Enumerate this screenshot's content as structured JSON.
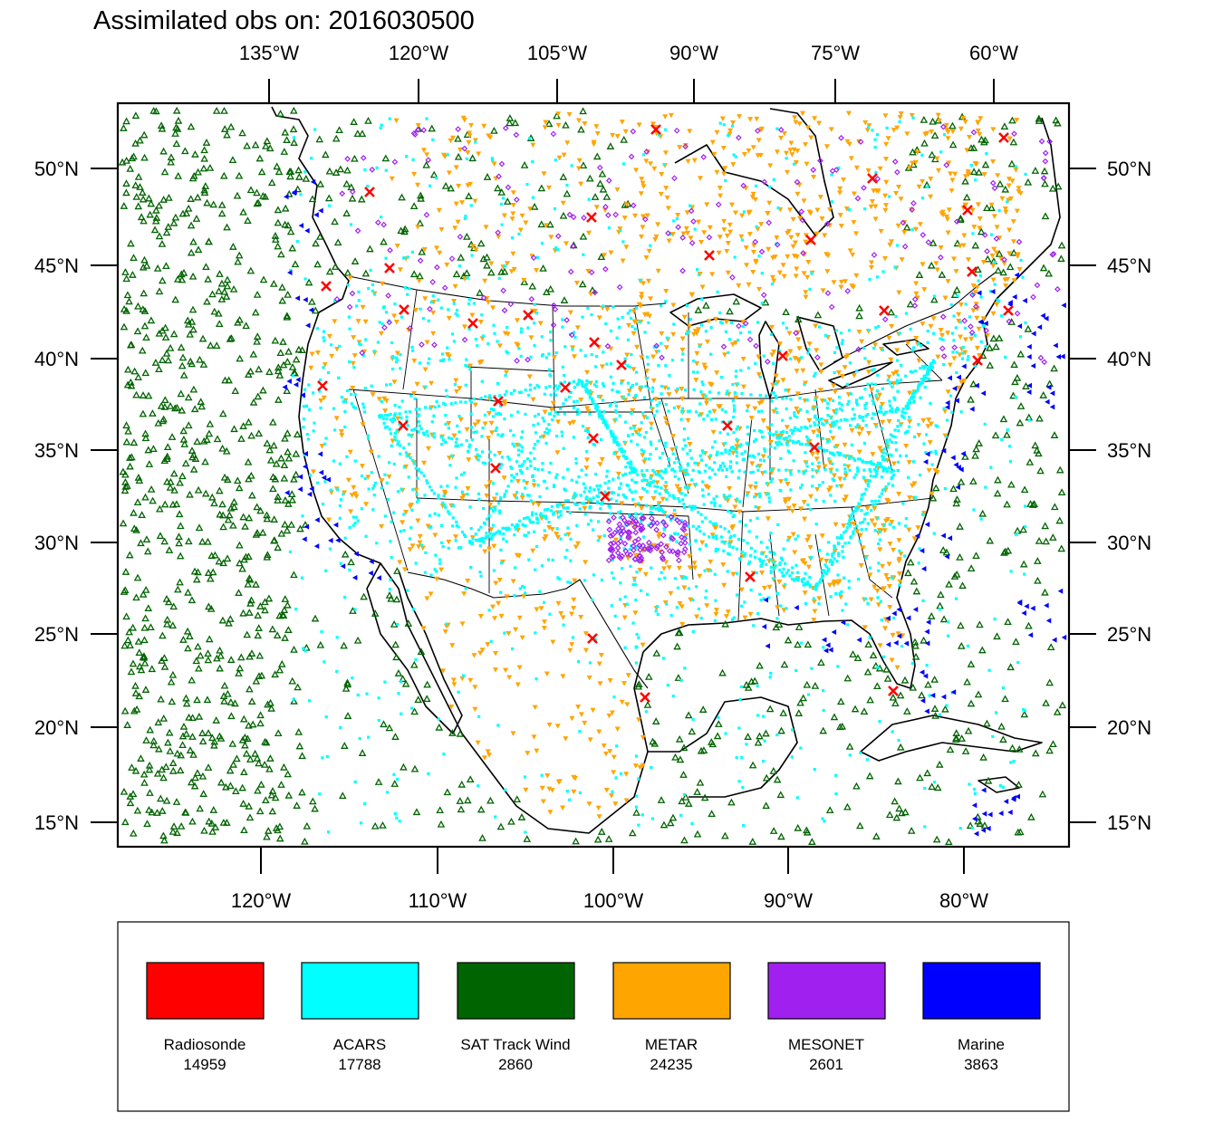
{
  "title": "Assimilated obs on: 2016030500",
  "top_ticks": [
    "135°W",
    "120°W",
    "105°W",
    "90°W",
    "75°W",
    "60°W"
  ],
  "bottom_ticks": [
    "120°W",
    "110°W",
    "100°W",
    "90°W",
    "80°W"
  ],
  "lat_ticks": [
    "50°N",
    "45°N",
    "40°N",
    "35°N",
    "30°N",
    "25°N",
    "20°N",
    "15°N"
  ],
  "legend": [
    {
      "name": "Radiosonde",
      "count": "14959",
      "color": "#ff0000",
      "marker": "x-cross"
    },
    {
      "name": "ACARS",
      "count": "17788",
      "color": "#00ffff",
      "marker": "square"
    },
    {
      "name": "SAT Track Wind",
      "count": "2860",
      "color": "#006400",
      "marker": "triangle-up"
    },
    {
      "name": "METAR",
      "count": "24235",
      "color": "#ffa500",
      "marker": "triangle-down"
    },
    {
      "name": "MESONET",
      "count": "2601",
      "color": "#a020f0",
      "marker": "diamond"
    },
    {
      "name": "Marine",
      "count": "3863",
      "color": "#0000ff",
      "marker": "triangle-left"
    }
  ]
}
